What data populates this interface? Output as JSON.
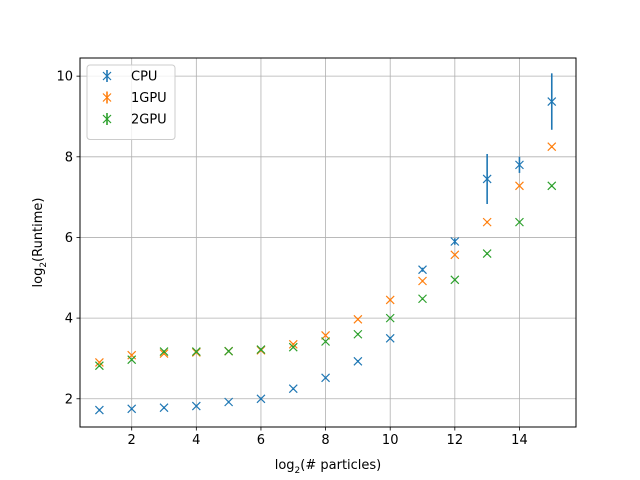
{
  "chart_data": {
    "type": "scatter",
    "title": "",
    "xlabel_main": "log",
    "xlabel_sub": "2",
    "xlabel_rest": "(# particles)",
    "ylabel_main": "log",
    "ylabel_sub": "2",
    "ylabel_rest": "(Runtime)",
    "xlim": [
      0.4,
      15.75
    ],
    "ylim": [
      1.3,
      10.45
    ],
    "xticks": [
      2,
      4,
      6,
      8,
      10,
      12,
      14
    ],
    "yticks": [
      2,
      4,
      6,
      8,
      10
    ],
    "grid": true,
    "legend_position": "top-left",
    "marker": "x",
    "series": [
      {
        "name": "CPU",
        "color": "#1f77b4",
        "x": [
          1,
          2,
          3,
          4,
          5,
          6,
          7,
          8,
          9,
          10,
          11,
          12,
          13,
          14,
          15
        ],
        "y": [
          1.72,
          1.75,
          1.78,
          1.82,
          1.92,
          2.0,
          2.25,
          2.52,
          2.93,
          3.5,
          5.2,
          5.9,
          7.45,
          7.8,
          9.37
        ],
        "yerr": [
          0.03,
          0.03,
          0.03,
          0.03,
          0.03,
          0.03,
          0.03,
          0.03,
          0.03,
          0.03,
          0.05,
          0.08,
          0.62,
          0.2,
          0.7
        ]
      },
      {
        "name": "1GPU",
        "color": "#ff7f0e",
        "x": [
          1,
          2,
          3,
          4,
          5,
          6,
          7,
          8,
          9,
          10,
          11,
          12,
          13,
          14,
          15
        ],
        "y": [
          2.9,
          3.08,
          3.12,
          3.15,
          3.18,
          3.2,
          3.35,
          3.57,
          3.97,
          4.45,
          4.92,
          5.57,
          6.38,
          7.28,
          8.25
        ],
        "yerr": [
          0.03,
          0.03,
          0.03,
          0.03,
          0.03,
          0.03,
          0.03,
          0.03,
          0.03,
          0.03,
          0.03,
          0.03,
          0.03,
          0.03,
          0.03
        ]
      },
      {
        "name": "2GPU",
        "color": "#2ca02c",
        "x": [
          1,
          2,
          3,
          4,
          5,
          6,
          7,
          8,
          9,
          10,
          11,
          12,
          13,
          14,
          15
        ],
        "y": [
          2.82,
          2.97,
          3.17,
          3.17,
          3.18,
          3.22,
          3.28,
          3.42,
          3.6,
          4.0,
          4.48,
          4.95,
          5.6,
          6.38,
          7.28
        ],
        "yerr": [
          0.03,
          0.03,
          0.03,
          0.03,
          0.03,
          0.03,
          0.03,
          0.03,
          0.03,
          0.03,
          0.03,
          0.03,
          0.03,
          0.03,
          0.03
        ]
      }
    ]
  }
}
